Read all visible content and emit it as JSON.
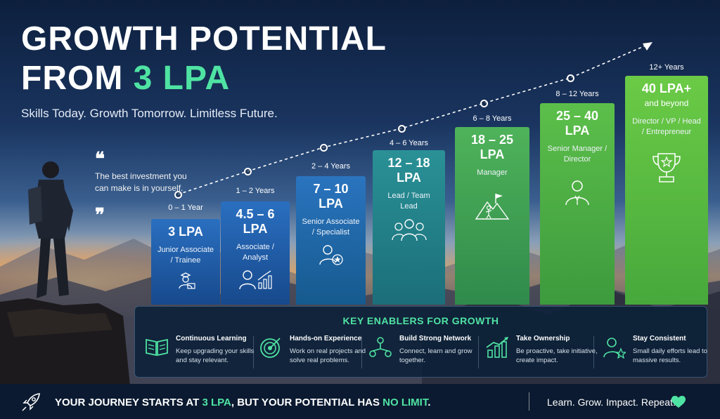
{
  "header": {
    "title_line1": "GROWTH POTENTIAL",
    "title_line2_prefix": "FROM ",
    "title_line2_accent": "3 LPA",
    "tagline": "Skills Today. Growth Tomorrow. Limitless Future."
  },
  "quote": {
    "open_mark": "❝",
    "text": "The best investment you can make is in yourself.",
    "close_mark": "❞"
  },
  "stages": [
    {
      "years": "0 – 1 Year",
      "value": "3 LPA",
      "value2": "",
      "role": "Junior Associate / Trainee",
      "icon": "trainee-icon"
    },
    {
      "years": "1 – 2 Years",
      "value": "4.5 – 6",
      "value2": "LPA",
      "role": "Associate / Analyst",
      "icon": "analyst-chart-icon"
    },
    {
      "years": "2 – 4 Years",
      "value": "7 – 10",
      "value2": "LPA",
      "role": "Senior Associate / Specialist",
      "icon": "specialist-star-icon"
    },
    {
      "years": "4 – 6 Years",
      "value": "12 – 18",
      "value2": "LPA",
      "role": "Lead / Team Lead",
      "icon": "team-icon"
    },
    {
      "years": "6 – 8 Years",
      "value": "18 – 25",
      "value2": "LPA",
      "role": "Manager",
      "icon": "summit-flag-icon"
    },
    {
      "years": "8 – 12 Years",
      "value": "25 – 40",
      "value2": "LPA",
      "role": "Senior Manager / Director",
      "icon": "executive-icon"
    },
    {
      "years": "12+ Years",
      "value": "40 LPA+",
      "value2": "and beyond",
      "role": "Director / VP / Head / Entrepreneur",
      "icon": "trophy-icon"
    }
  ],
  "enablers": {
    "title": "KEY ENABLERS FOR GROWTH",
    "items": [
      {
        "name": "Continuous Learning",
        "desc": "Keep upgrading your skills and stay relevant.",
        "icon": "book-icon"
      },
      {
        "name": "Hands-on Experience",
        "desc": "Work on real projects and solve real problems.",
        "icon": "target-icon"
      },
      {
        "name": "Build Strong Network",
        "desc": "Connect, learn and grow together.",
        "icon": "network-icon"
      },
      {
        "name": "Take Ownership",
        "desc": "Be proactive, take initiative, create impact.",
        "icon": "growth-chart-icon"
      },
      {
        "name": "Stay Consistent",
        "desc": "Small daily efforts lead to massive results.",
        "icon": "person-star-icon"
      }
    ]
  },
  "footer": {
    "journey_a": "YOUR JOURNEY STARTS AT ",
    "journey_b": "3 LPA",
    "journey_c": ", BUT YOUR POTENTIAL HAS ",
    "journey_d": "NO LIMIT",
    "journey_e": ".",
    "motto": "Learn. Grow. Impact. Repeat.",
    "rocket_icon": "rocket-icon",
    "heart_icon": "heart-icon"
  },
  "colors": {
    "accent_green": "#4fe3a3",
    "bar_blue": "#1f5fa8",
    "bar_green": "#5cbf4a"
  }
}
